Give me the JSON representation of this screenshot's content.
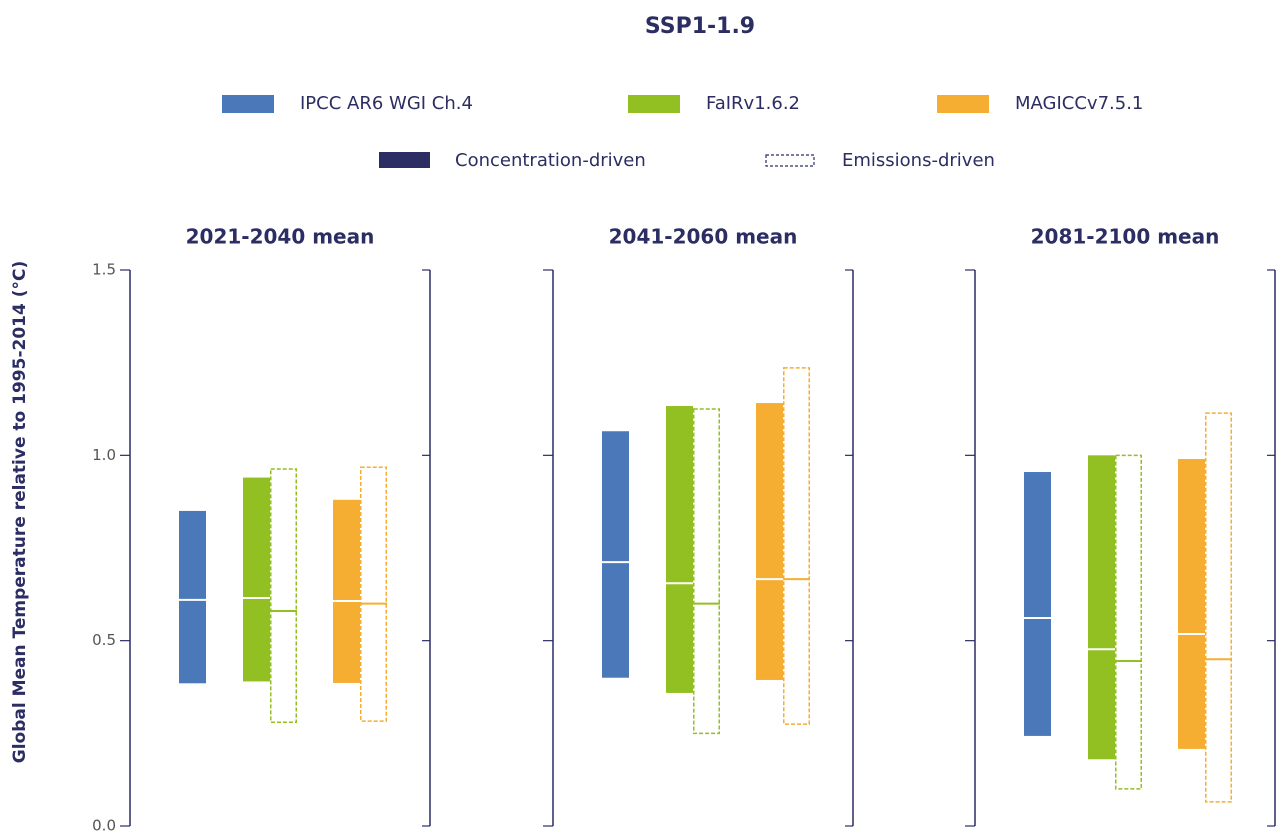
{
  "title": "SSP1-1.9",
  "legend": {
    "models": [
      {
        "name": "IPCC AR6 WGI Ch.4",
        "color": "#4a78b9"
      },
      {
        "name": "FaIRv1.6.2",
        "color": "#92bf22"
      },
      {
        "name": "MAGICCv7.5.1",
        "color": "#f5ad32"
      }
    ],
    "styles": [
      {
        "name": "Concentration-driven",
        "color": "#2b2d63"
      },
      {
        "name": "Emissions-driven",
        "color": "#2b2d63"
      }
    ]
  },
  "y_axis": {
    "label": "Global Mean Temperature relative to 1995-2014 (°C)",
    "ylim": [
      0,
      1.5
    ],
    "yticks": [
      {
        "value": 0,
        "label": "0.0"
      },
      {
        "value": 0.5,
        "label": "0.5"
      },
      {
        "value": 1,
        "label": "1.0"
      },
      {
        "value": 1.5,
        "label": "1.5"
      }
    ]
  },
  "chart_data": [
    {
      "type": "floating-bar",
      "title": "2021-2040 mean",
      "groups": [
        {
          "bars": [
            {
              "low": 0.385,
              "high": 0.85,
              "median": 0.61
            }
          ]
        },
        {
          "bars": [
            {
              "low": 0.39,
              "high": 0.94,
              "median": 0.615
            },
            {
              "low": 0.28,
              "high": 0.963,
              "median": 0.58
            }
          ]
        },
        {
          "bars": [
            {
              "low": 0.386,
              "high": 0.88,
              "median": 0.607
            },
            {
              "low": 0.283,
              "high": 0.968,
              "median": 0.6
            }
          ]
        }
      ]
    },
    {
      "type": "floating-bar",
      "title": "2041-2060 mean",
      "groups": [
        {
          "bars": [
            {
              "low": 0.4,
              "high": 1.065,
              "median": 0.712
            }
          ]
        },
        {
          "bars": [
            {
              "low": 0.359,
              "high": 1.133,
              "median": 0.655
            },
            {
              "low": 0.25,
              "high": 1.125,
              "median": 0.6
            }
          ]
        },
        {
          "bars": [
            {
              "low": 0.394,
              "high": 1.141,
              "median": 0.666
            },
            {
              "low": 0.275,
              "high": 1.236,
              "median": 0.666
            }
          ]
        }
      ]
    },
    {
      "type": "floating-bar",
      "title": "2081-2100 mean",
      "groups": [
        {
          "bars": [
            {
              "low": 0.243,
              "high": 0.955,
              "median": 0.561
            }
          ]
        },
        {
          "bars": [
            {
              "low": 0.18,
              "high": 1.0,
              "median": 0.477
            },
            {
              "low": 0.1,
              "high": 1.0,
              "median": 0.445
            }
          ]
        },
        {
          "bars": [
            {
              "low": 0.208,
              "high": 0.99,
              "median": 0.518
            },
            {
              "low": 0.065,
              "high": 1.114,
              "median": 0.45
            }
          ]
        }
      ]
    }
  ]
}
